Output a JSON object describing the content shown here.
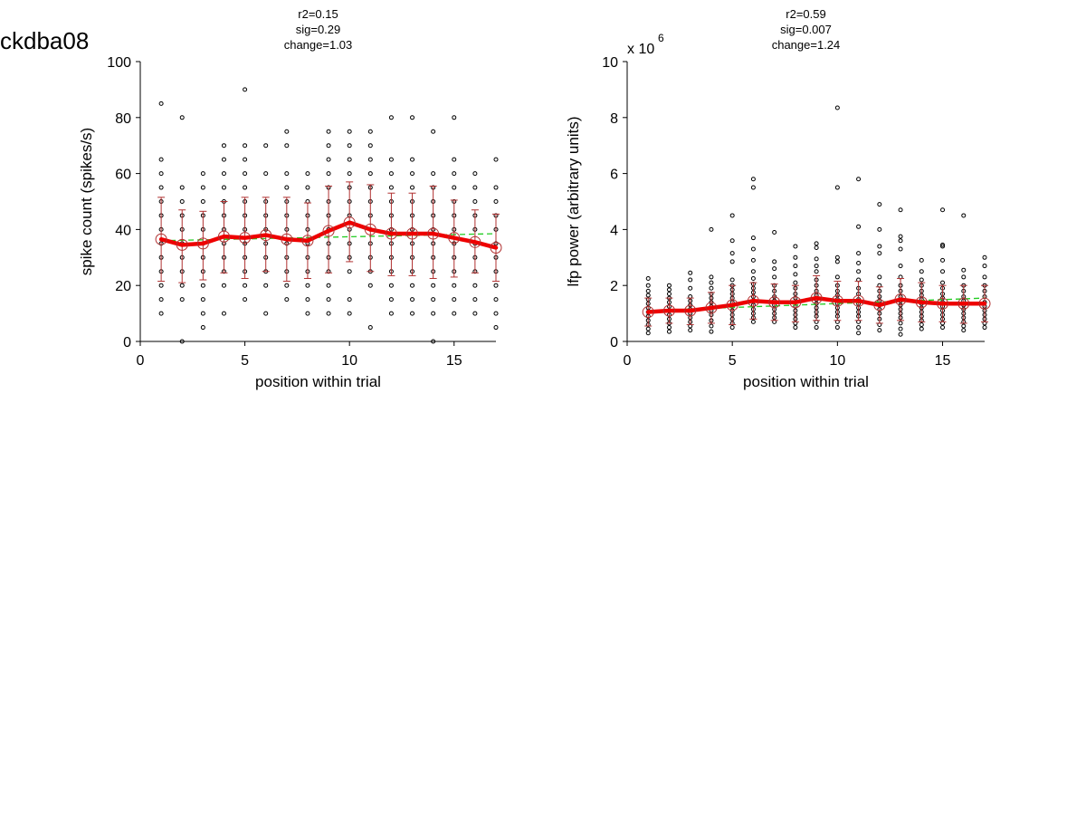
{
  "figure_title": "ckdba08",
  "colors": {
    "scatter": "#000000",
    "mean_line": "#ee0000",
    "error_bar": "#b03030",
    "fit_line": "#22cc22",
    "axis": "#000000"
  },
  "chart_data": [
    {
      "type": "scatter",
      "name": "spike",
      "stats": [
        "r2=0.15",
        "sig=0.29",
        "change=1.03"
      ],
      "xlabel": "position within trial",
      "ylabel": "spike count (spikes/s)",
      "exponent_label": "",
      "xlim": [
        0,
        17
      ],
      "ylim": [
        0,
        100
      ],
      "xticks": [
        0,
        5,
        10,
        15
      ],
      "yticks": [
        0,
        20,
        40,
        60,
        80,
        100
      ],
      "x": [
        1,
        2,
        3,
        4,
        5,
        6,
        7,
        8,
        9,
        10,
        11,
        12,
        13,
        14,
        15,
        16,
        17
      ],
      "mean": [
        36.5,
        34.5,
        35,
        37.5,
        37,
        38,
        36.5,
        36,
        39.5,
        42.5,
        40,
        38.5,
        38.5,
        38.5,
        37,
        35.5,
        33.5
      ],
      "err_low": [
        21.5,
        21,
        22,
        24.5,
        22.5,
        25,
        21.5,
        22.5,
        24.5,
        28.5,
        25,
        23.5,
        23.5,
        22.5,
        23,
        24.5,
        21.5
      ],
      "err_high": [
        51.5,
        47,
        46.5,
        50,
        51.5,
        51.5,
        51.5,
        49.5,
        55.5,
        57,
        56,
        53,
        53,
        55.5,
        50.5,
        47,
        45.5
      ],
      "fit": [
        36,
        38.5
      ],
      "points": [
        [
          10,
          15,
          20,
          25,
          30,
          35,
          40,
          45,
          50,
          55,
          60,
          65,
          85
        ],
        [
          0,
          15,
          20,
          25,
          30,
          35,
          40,
          45,
          50,
          55,
          80
        ],
        [
          5,
          10,
          15,
          20,
          25,
          30,
          35,
          40,
          45,
          50,
          55,
          60
        ],
        [
          10,
          20,
          25,
          30,
          35,
          40,
          45,
          50,
          55,
          60,
          65,
          70
        ],
        [
          15,
          20,
          25,
          30,
          35,
          40,
          45,
          50,
          55,
          60,
          65,
          70,
          90
        ],
        [
          10,
          20,
          25,
          30,
          35,
          40,
          45,
          50,
          60,
          70
        ],
        [
          15,
          20,
          25,
          30,
          35,
          40,
          45,
          50,
          55,
          60,
          70,
          75
        ],
        [
          10,
          15,
          20,
          25,
          30,
          35,
          40,
          45,
          50,
          55,
          60
        ],
        [
          10,
          15,
          20,
          25,
          30,
          35,
          40,
          45,
          50,
          55,
          60,
          65,
          70,
          75
        ],
        [
          10,
          15,
          25,
          30,
          35,
          40,
          45,
          50,
          55,
          60,
          65,
          70,
          75
        ],
        [
          5,
          20,
          25,
          30,
          35,
          40,
          45,
          50,
          55,
          60,
          65,
          70,
          75
        ],
        [
          10,
          15,
          20,
          25,
          30,
          35,
          40,
          45,
          50,
          55,
          60,
          65,
          80
        ],
        [
          10,
          15,
          20,
          25,
          30,
          35,
          40,
          45,
          50,
          55,
          60,
          65,
          80
        ],
        [
          0,
          10,
          15,
          20,
          25,
          30,
          35,
          40,
          45,
          50,
          55,
          60,
          75
        ],
        [
          10,
          15,
          20,
          25,
          30,
          35,
          40,
          45,
          50,
          55,
          60,
          65,
          80
        ],
        [
          10,
          15,
          20,
          25,
          30,
          35,
          40,
          45,
          50,
          55,
          60
        ],
        [
          5,
          10,
          15,
          20,
          25,
          30,
          35,
          40,
          45,
          50,
          55,
          65
        ]
      ]
    },
    {
      "type": "scatter",
      "name": "lfp",
      "stats": [
        "r2=0.59",
        "sig=0.007",
        "change=1.24"
      ],
      "xlabel": "position within trial",
      "ylabel": "lfp power (arbitrary units)",
      "exponent_label": "x 10",
      "exponent_sup": "6",
      "xlim": [
        0,
        17
      ],
      "ylim": [
        0,
        10
      ],
      "xticks": [
        0,
        5,
        10,
        15
      ],
      "yticks": [
        0,
        2,
        4,
        6,
        8,
        10
      ],
      "x": [
        1,
        2,
        3,
        4,
        5,
        6,
        7,
        8,
        9,
        10,
        11,
        12,
        13,
        14,
        15,
        16,
        17
      ],
      "mean": [
        1.05,
        1.1,
        1.1,
        1.2,
        1.3,
        1.45,
        1.4,
        1.4,
        1.55,
        1.45,
        1.45,
        1.3,
        1.5,
        1.4,
        1.35,
        1.35,
        1.35
      ],
      "err_low": [
        0.55,
        0.65,
        0.6,
        0.65,
        0.6,
        0.8,
        0.75,
        0.7,
        0.75,
        0.75,
        0.75,
        0.65,
        0.75,
        0.7,
        0.7,
        0.65,
        0.7
      ],
      "err_high": [
        1.55,
        1.55,
        1.55,
        1.75,
        2.0,
        2.1,
        2.05,
        2.0,
        2.35,
        2.15,
        2.15,
        1.95,
        2.25,
        2.1,
        2.0,
        2.0,
        2.0
      ],
      "fit": [
        1.1,
        1.55
      ],
      "points": [
        [
          0.3,
          0.45,
          0.6,
          0.75,
          0.9,
          1.05,
          1.2,
          1.35,
          1.5,
          1.65,
          1.8,
          2.0,
          2.25
        ],
        [
          0.35,
          0.5,
          0.65,
          0.8,
          0.95,
          1.1,
          1.25,
          1.4,
          1.55,
          1.7,
          1.85,
          2.0
        ],
        [
          0.4,
          0.55,
          0.7,
          0.85,
          1.0,
          1.15,
          1.3,
          1.45,
          1.6,
          1.9,
          2.2,
          2.45
        ],
        [
          0.35,
          0.55,
          0.75,
          0.95,
          1.1,
          1.25,
          1.4,
          1.55,
          1.7,
          1.9,
          2.1,
          2.3,
          4.0
        ],
        [
          0.5,
          0.65,
          0.8,
          0.95,
          1.1,
          1.25,
          1.4,
          1.55,
          1.7,
          1.85,
          2.0,
          2.2,
          2.85,
          3.15,
          3.6,
          4.5
        ],
        [
          0.7,
          0.85,
          1.0,
          1.15,
          1.3,
          1.45,
          1.6,
          1.75,
          1.9,
          2.05,
          2.25,
          2.5,
          2.9,
          3.3,
          3.7,
          5.5,
          5.8
        ],
        [
          0.7,
          0.85,
          1.0,
          1.15,
          1.3,
          1.45,
          1.6,
          1.8,
          2.0,
          2.3,
          2.6,
          2.85,
          3.9
        ],
        [
          0.5,
          0.65,
          0.8,
          0.95,
          1.1,
          1.25,
          1.4,
          1.55,
          1.7,
          1.9,
          2.1,
          2.4,
          2.7,
          3.0,
          3.4
        ],
        [
          0.5,
          0.7,
          0.9,
          1.05,
          1.2,
          1.35,
          1.5,
          1.65,
          1.8,
          2.0,
          2.2,
          2.5,
          2.7,
          2.95,
          3.35,
          3.5
        ],
        [
          0.5,
          0.7,
          0.9,
          1.05,
          1.2,
          1.35,
          1.5,
          1.65,
          1.8,
          2.0,
          2.3,
          2.85,
          3.0,
          5.5,
          8.35
        ],
        [
          0.3,
          0.5,
          0.7,
          0.9,
          1.05,
          1.2,
          1.35,
          1.5,
          1.7,
          1.9,
          2.2,
          2.5,
          2.8,
          3.15,
          4.1,
          5.8
        ],
        [
          0.4,
          0.6,
          0.8,
          1.0,
          1.15,
          1.3,
          1.45,
          1.6,
          1.8,
          2.0,
          2.3,
          3.15,
          3.4,
          4.0,
          4.9
        ],
        [
          0.25,
          0.45,
          0.65,
          0.85,
          1.0,
          1.15,
          1.3,
          1.45,
          1.6,
          1.8,
          2.0,
          2.3,
          2.7,
          3.3,
          3.6,
          3.75,
          4.7
        ],
        [
          0.45,
          0.6,
          0.75,
          0.9,
          1.05,
          1.2,
          1.35,
          1.5,
          1.65,
          1.8,
          2.0,
          2.2,
          2.5,
          2.9
        ],
        [
          0.5,
          0.65,
          0.8,
          0.95,
          1.1,
          1.25,
          1.4,
          1.55,
          1.7,
          1.9,
          2.1,
          2.5,
          2.9,
          3.4,
          3.45,
          4.7
        ],
        [
          0.4,
          0.55,
          0.7,
          0.85,
          1.0,
          1.15,
          1.3,
          1.45,
          1.6,
          1.8,
          2.0,
          2.3,
          2.55,
          4.5
        ],
        [
          0.5,
          0.65,
          0.8,
          0.95,
          1.1,
          1.25,
          1.4,
          1.6,
          1.8,
          2.0,
          2.3,
          2.7,
          3.0
        ]
      ]
    }
  ]
}
